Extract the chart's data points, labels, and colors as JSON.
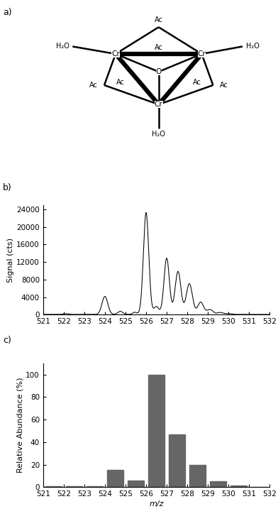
{
  "panel_a_label": "a)",
  "panel_b_label": "b)",
  "panel_c_label": "c)",
  "ms_xrange": [
    521,
    532
  ],
  "ms_xticks": [
    521,
    522,
    523,
    524,
    525,
    526,
    527,
    528,
    529,
    530,
    531,
    532
  ],
  "ms_yticks_b": [
    0,
    4000,
    8000,
    12000,
    16000,
    20000,
    24000
  ],
  "ms_ylabel_b": "Signal (cts)",
  "ms_yticks_c": [
    0,
    20,
    40,
    60,
    80,
    100
  ],
  "ms_ylabel_c": "Relative Abundance (%)",
  "ms_xlabel": "m/z",
  "bar_mz": [
    521.5,
    522.5,
    523.5,
    524.5,
    525.5,
    526.5,
    527.5,
    528.5,
    529.5,
    530.5,
    531.5
  ],
  "bar_vals": [
    0.5,
    1.0,
    0.5,
    15.0,
    6.0,
    100.0,
    47.0,
    20.0,
    5.0,
    1.5,
    0.0
  ],
  "bar_color": "#666666",
  "bar_width": 0.78,
  "line_color": "#000000",
  "background_color": "#ffffff",
  "label_fontsize": 9,
  "tick_fontsize": 7.5,
  "ylabel_fontsize": 8,
  "peaks_mu": [
    522.1,
    524.0,
    524.75,
    525.45,
    526.0,
    526.5,
    527.0,
    527.55,
    528.1,
    528.65,
    529.1,
    529.6,
    530.0
  ],
  "peaks_sigma": [
    0.12,
    0.14,
    0.12,
    0.1,
    0.13,
    0.12,
    0.13,
    0.14,
    0.15,
    0.14,
    0.15,
    0.14,
    0.15
  ],
  "peaks_amp": [
    180,
    4100,
    700,
    500,
    23200,
    1800,
    12800,
    9800,
    7000,
    2800,
    1100,
    450,
    180
  ]
}
